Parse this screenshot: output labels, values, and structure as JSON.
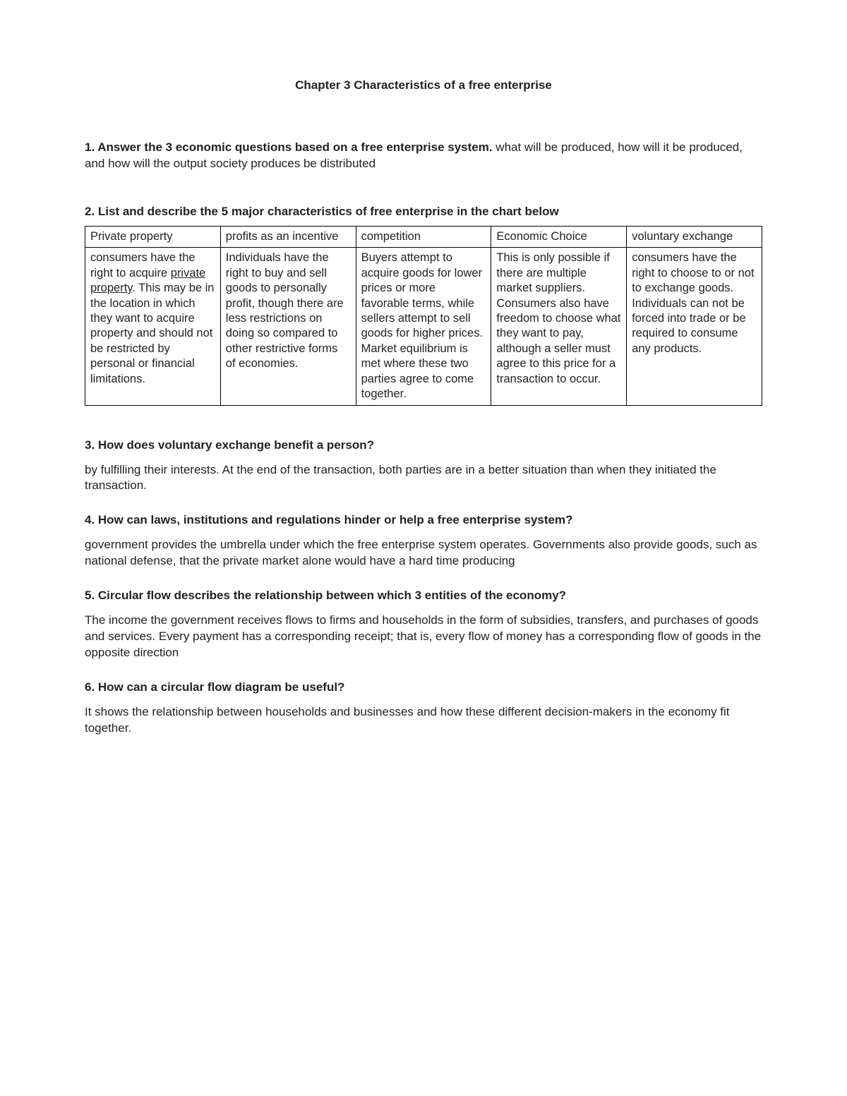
{
  "title": "Chapter 3   Characteristics of a free enterprise",
  "q1": {
    "prompt": "1.  Answer the 3 economic questions based on a free enterprise system. ",
    "answer": "what will be produced, how will it be produced, and how will the output society produces be distributed"
  },
  "q2": {
    "prompt": "2.  List and describe the 5 major characteristics of free enterprise in the chart below",
    "table": {
      "headers": [
        "Private property",
        "profits as an incentive",
        "competition",
        "Economic Choice",
        "voluntary exchange"
      ],
      "cells": [
        {
          "pre": "consumers have the right to acquire ",
          "underlined": "private property",
          "post": ". This may be in the location in which they want to acquire property and should not be restricted by personal or financial limitations."
        },
        {
          "text": "Individuals have the right to buy and sell goods to personally profit, though there are less restrictions on doing so compared to other restrictive forms of economies."
        },
        {
          "text": "Buyers attempt to acquire goods for lower prices or more favorable terms, while sellers attempt to sell goods for higher prices. Market equilibrium is met where these two parties agree to come together."
        },
        {
          "text": "This is only possible if there are multiple market suppliers. Consumers also have freedom to choose what they want to pay, although a seller must agree to this price for a transaction to occur."
        },
        {
          "text": "consumers have the right to choose to or not to exchange goods. Individuals can not be forced into trade or be required to consume any products."
        }
      ]
    }
  },
  "q3": {
    "prompt": "3.  How does voluntary exchange benefit a person?",
    "answer": "by fulfilling their interests. At the end of the transaction, both parties are in a better situation than when they initiated the transaction."
  },
  "q4": {
    "prompt": "4. How can laws, institutions and regulations hinder or help a free enterprise system?",
    "answer": "government provides the umbrella under which the free enterprise system operates. Governments also provide goods, such as national defense, that the private market alone would have a hard time producing"
  },
  "q5": {
    "prompt": "5.  Circular flow describes the relationship between which 3 entities of the economy?",
    "answer": "The income the government receives flows to firms and households in the form of subsidies, transfers, and purchases of goods and services. Every payment has a corresponding receipt; that is, every flow of money has a corresponding flow of goods in the opposite direction"
  },
  "q6": {
    "prompt": "6.  How can a circular flow diagram be useful?",
    "answer": "It shows the relationship between households and businesses and how these different decision-makers in the economy fit together."
  }
}
